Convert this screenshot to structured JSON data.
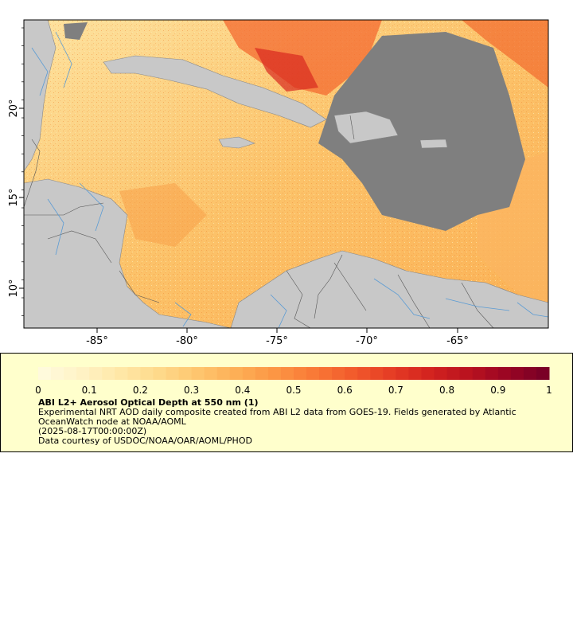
{
  "map": {
    "lon_ticks": [
      "-85°",
      "-80°",
      "-75°",
      "-70°",
      "-65°"
    ],
    "lat_ticks": [
      "10°",
      "15°",
      "20°"
    ],
    "no_data_color": "#7f7f7f",
    "land_color": "#c8c8c8",
    "river_color": "#5a9bd4",
    "border_color": "#555555"
  },
  "legend": {
    "colorbar_ticks": [
      "0",
      "0.1",
      "0.2",
      "0.3",
      "0.4",
      "0.5",
      "0.6",
      "0.7",
      "0.8",
      "0.9",
      "1"
    ],
    "colormap": [
      "#fffadc",
      "#fff2c4",
      "#ffe7a6",
      "#fed98a",
      "#fec56e",
      "#fdaf56",
      "#fc9644",
      "#f97a37",
      "#f25c2c",
      "#e63e25",
      "#d4241f",
      "#bb131f",
      "#9c0623",
      "#7a0026"
    ],
    "title": "ABI L2+ Aerosol Optical Depth at 550 nm (1)",
    "line1": "Experimental NRT AOD daily composite created from ABI L2 data from GOES-19. Fields generated by Atlantic",
    "line2": "OceanWatch node at NOAA/AOML",
    "line3": "(2025-08-17T00:00:00Z)",
    "line4": "Data courtesy of USDOC/NOAA/OAR/AOML/PHOD"
  }
}
